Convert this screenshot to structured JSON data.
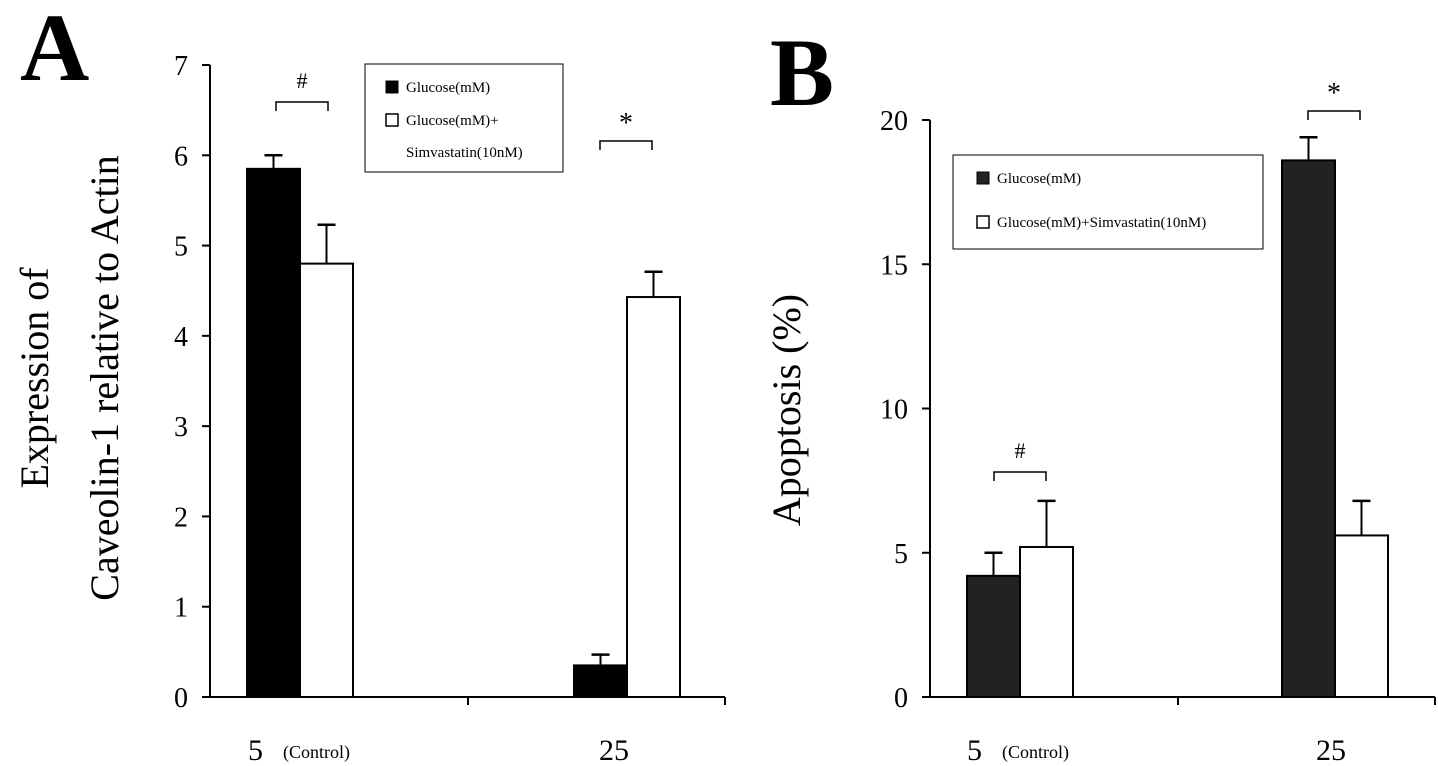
{
  "panels": [
    {
      "label": "A",
      "ylabel_line1": "Expression of",
      "ylabel_line2": "Caveolin-1 relative to Actin",
      "legend": [
        "Glucose(mM)",
        "Glucose(mM)+",
        "Simvastatin(10nM)"
      ],
      "x_labels": [
        {
          "main": "5",
          "sub": "(Control)"
        },
        {
          "main": "25",
          "sub": ""
        }
      ],
      "sig_marks": [
        "#",
        "*"
      ]
    },
    {
      "label": "B",
      "ylabel": "Apoptosis (%)",
      "legend": [
        "Glucose(mM)",
        "Glucose(mM)+Simvastatin(10nM)"
      ],
      "x_labels": [
        {
          "main": "5",
          "sub": "(Control)"
        },
        {
          "main": "25",
          "sub": ""
        }
      ],
      "sig_marks": [
        "#",
        "*"
      ]
    }
  ],
  "chart_data": [
    {
      "type": "bar",
      "title": "",
      "ylabel": "Expression of Caveolin-1 relative to Actin",
      "xlabel": "",
      "categories": [
        "5 (Control)",
        "25"
      ],
      "ylim": [
        0,
        7
      ],
      "yticks": [
        0,
        1,
        2,
        3,
        4,
        5,
        6,
        7
      ],
      "series": [
        {
          "name": "Glucose(mM)",
          "values": [
            5.85,
            0.35
          ],
          "errors": [
            0.15,
            0.12
          ],
          "color": "#000000"
        },
        {
          "name": "Glucose(mM)+ Simvastatin(10nM)",
          "values": [
            4.8,
            4.43
          ],
          "errors": [
            0.43,
            0.28
          ],
          "color": "#ffffff"
        }
      ],
      "annotations": [
        "#",
        "*"
      ],
      "legend_position": "top-right",
      "grid": false
    },
    {
      "type": "bar",
      "title": "",
      "ylabel": "Apoptosis (%)",
      "xlabel": "",
      "categories": [
        "5 (Control)",
        "25"
      ],
      "ylim": [
        0,
        20
      ],
      "yticks": [
        0,
        5,
        10,
        15,
        20
      ],
      "series": [
        {
          "name": "Glucose(mM)",
          "values": [
            4.2,
            18.6
          ],
          "errors": [
            0.8,
            0.8
          ],
          "color": "#222222"
        },
        {
          "name": "Glucose(mM)+Simvastatin(10nM)",
          "values": [
            5.2,
            5.6
          ],
          "errors": [
            1.6,
            1.2
          ],
          "color": "#ffffff"
        }
      ],
      "annotations": [
        "#",
        "*"
      ],
      "legend_position": "top-center",
      "grid": false
    }
  ]
}
